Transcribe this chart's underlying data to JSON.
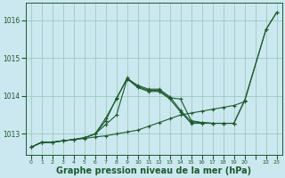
{
  "background_color": "#cbe8f0",
  "grid_color": "#99ccbb",
  "line_color": "#1a5c28",
  "xlabel": "Graphe pression niveau de la mer (hPa)",
  "xlabel_fontsize": 7,
  "yticks": [
    1013,
    1014,
    1015,
    1016
  ],
  "ylim": [
    1012.45,
    1016.45
  ],
  "xlim": [
    -0.5,
    23.5
  ],
  "figsize": [
    3.2,
    2.0
  ],
  "dpi": 100,
  "series": [
    {
      "x": [
        0,
        1,
        2,
        3,
        4,
        5,
        6,
        7,
        8,
        9,
        10,
        11,
        12,
        13,
        14,
        15,
        16,
        17,
        18,
        19,
        20,
        22,
        23
      ],
      "y": [
        1012.65,
        1012.78,
        1012.78,
        1012.82,
        1012.85,
        1012.88,
        1012.92,
        1012.95,
        1013.0,
        1013.05,
        1013.1,
        1013.2,
        1013.3,
        1013.4,
        1013.5,
        1013.55,
        1013.6,
        1013.65,
        1013.7,
        1013.75,
        1013.85,
        1015.75,
        1016.2
      ]
    },
    {
      "x": [
        0,
        1,
        2,
        3,
        4,
        5,
        6,
        7,
        8,
        9,
        10,
        11,
        12,
        13,
        14,
        15,
        16,
        17,
        18,
        19,
        20,
        22,
        23
      ],
      "y": [
        1012.65,
        1012.78,
        1012.78,
        1012.82,
        1012.85,
        1012.9,
        1013.0,
        1013.35,
        1013.95,
        1014.45,
        1014.28,
        1014.18,
        1014.18,
        1013.98,
        1013.62,
        1013.32,
        1013.3,
        1013.28,
        1013.28,
        1013.28,
        1013.88,
        1015.75,
        1016.2
      ]
    },
    {
      "x": [
        0,
        1,
        2,
        3,
        4,
        5,
        6,
        7,
        8,
        9,
        10,
        11,
        12,
        13,
        14,
        15,
        16,
        17,
        18,
        19,
        20
      ],
      "y": [
        1012.65,
        1012.78,
        1012.78,
        1012.82,
        1012.85,
        1012.9,
        1013.0,
        1013.25,
        1013.5,
        1014.45,
        1014.22,
        1014.12,
        1014.12,
        1013.92,
        1013.58,
        1013.28,
        1013.28,
        1013.28,
        1013.28,
        1013.28,
        1013.88
      ]
    },
    {
      "x": [
        0,
        1,
        2,
        3,
        4,
        5,
        6,
        7,
        8,
        9,
        10,
        11,
        12,
        13,
        14,
        15,
        16,
        17,
        18,
        19
      ],
      "y": [
        1012.65,
        1012.78,
        1012.78,
        1012.82,
        1012.85,
        1012.9,
        1013.0,
        1013.42,
        1013.92,
        1014.48,
        1014.25,
        1014.15,
        1014.15,
        1013.95,
        1013.92,
        1013.35,
        1013.3,
        1013.28,
        1013.28,
        1013.28
      ]
    }
  ]
}
